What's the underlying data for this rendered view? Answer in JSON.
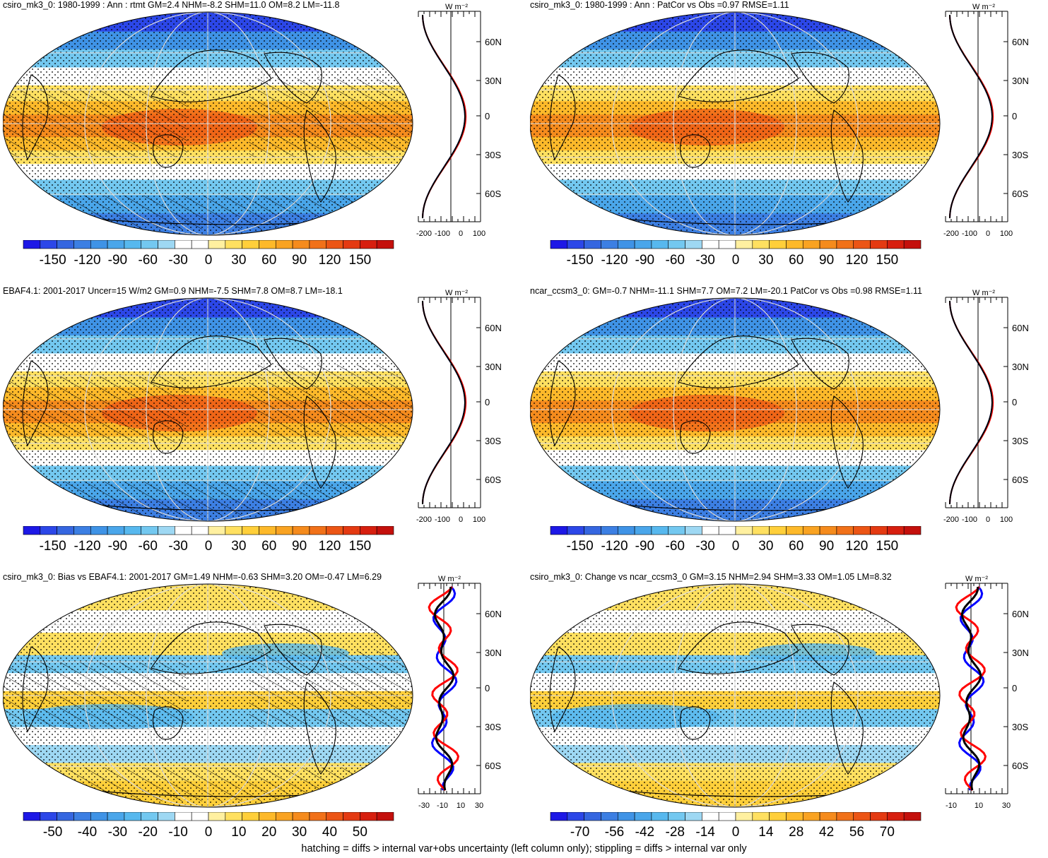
{
  "panels": [
    {
      "id": "p1",
      "title": "csiro_mk3_0: 1980-1999 : Ann : rtmt GM=2.4 NHM=-8.2 SHM=11.0 OM=8.2 LM=-11.8",
      "colorbar_labels": [
        "-150",
        "-120",
        "-90",
        "-60",
        "-30",
        "0",
        "30",
        "60",
        "90",
        "120",
        "150"
      ],
      "profile_ticks": [
        "-200",
        "-100",
        "0",
        "100"
      ],
      "profile_unit": "W m⁻²",
      "lat_labels": [
        "60N",
        "30N",
        "0",
        "30S",
        "60S"
      ],
      "hatched": true,
      "field": "mean"
    },
    {
      "id": "p2",
      "title": "csiro_mk3_0: 1980-1999 : Ann : PatCor vs Obs =0.97 RMSE=1.11",
      "colorbar_labels": [
        "-150",
        "-120",
        "-90",
        "-60",
        "-30",
        "0",
        "30",
        "60",
        "90",
        "120",
        "150"
      ],
      "profile_ticks": [
        "-200",
        "-100",
        "0",
        "100"
      ],
      "profile_unit": "W m⁻²",
      "lat_labels": [
        "60N",
        "30N",
        "0",
        "30S",
        "60S"
      ],
      "hatched": false,
      "field": "mean"
    },
    {
      "id": "p3",
      "title": "EBAF4.1: 2001-2017 Uncer=15 W/m2 GM=0.9 NHM=-7.5 SHM=7.8 OM=8.7 LM=-18.1",
      "colorbar_labels": [
        "-150",
        "-120",
        "-90",
        "-60",
        "-30",
        "0",
        "30",
        "60",
        "90",
        "120",
        "150"
      ],
      "profile_ticks": [
        "-200",
        "-100",
        "0",
        "100"
      ],
      "profile_unit": "W m⁻²",
      "lat_labels": [
        "60N",
        "30N",
        "0",
        "30S",
        "60S"
      ],
      "hatched": true,
      "field": "mean"
    },
    {
      "id": "p4",
      "title": "ncar_ccsm3_0: GM=-0.7 NHM=-11.1 SHM=7.7 OM=7.2 LM=-20.1 PatCor vs Obs =0.98 RMSE=1.11",
      "colorbar_labels": [
        "-150",
        "-120",
        "-90",
        "-60",
        "-30",
        "0",
        "30",
        "60",
        "90",
        "120",
        "150"
      ],
      "profile_ticks": [
        "-200",
        "-100",
        "0",
        "100"
      ],
      "profile_unit": "W m⁻²",
      "lat_labels": [
        "60N",
        "30N",
        "0",
        "30S",
        "60S"
      ],
      "hatched": false,
      "field": "mean"
    },
    {
      "id": "p5",
      "title": "csiro_mk3_0: Bias vs EBAF4.1: 2001-2017 GM=1.49 NHM=-0.63 SHM=3.20 OM=-0.47 LM=6.29",
      "colorbar_labels": [
        "-50",
        "-40",
        "-30",
        "-20",
        "-10",
        "0",
        "10",
        "20",
        "30",
        "40",
        "50"
      ],
      "profile_ticks": [
        "-30",
        "-10",
        "10",
        "30"
      ],
      "profile_unit": "W m⁻²",
      "lat_labels": [
        "60N",
        "30N",
        "0",
        "30S",
        "60S"
      ],
      "hatched": true,
      "field": "diff"
    },
    {
      "id": "p6",
      "title": "csiro_mk3_0: Change vs ncar_ccsm3_0 GM=3.15 NHM=2.94 SHM=3.33 OM=1.05 LM=8.32",
      "colorbar_labels": [
        "-70",
        "-56",
        "-42",
        "-28",
        "-14",
        "0",
        "14",
        "28",
        "42",
        "56",
        "70"
      ],
      "profile_ticks": [
        "-10",
        "10",
        "30"
      ],
      "profile_unit": "W m⁻²",
      "lat_labels": [
        "60N",
        "30N",
        "0",
        "30S",
        "60S"
      ],
      "hatched": false,
      "field": "diff"
    }
  ],
  "colors": {
    "palette": [
      "#1d18e6",
      "#2c47e8",
      "#3566e0",
      "#3c7fe3",
      "#3f93e6",
      "#4aa6ea",
      "#57b8ee",
      "#73c8f0",
      "#9ed8f3",
      "#ffffff",
      "#ffffff",
      "#fff0a0",
      "#ffe060",
      "#ffcf3a",
      "#fdb92a",
      "#f9a322",
      "#f58b1d",
      "#f17119",
      "#ec5515",
      "#e43a12",
      "#d71f0f",
      "#c4100c"
    ],
    "profile_model": "#ff0000",
    "profile_obs": "#0000ff",
    "profile_mean": "#000000"
  },
  "footnote": "hatching = diffs > internal var+obs uncertainty (left column only); stippling = diffs > internal var only"
}
